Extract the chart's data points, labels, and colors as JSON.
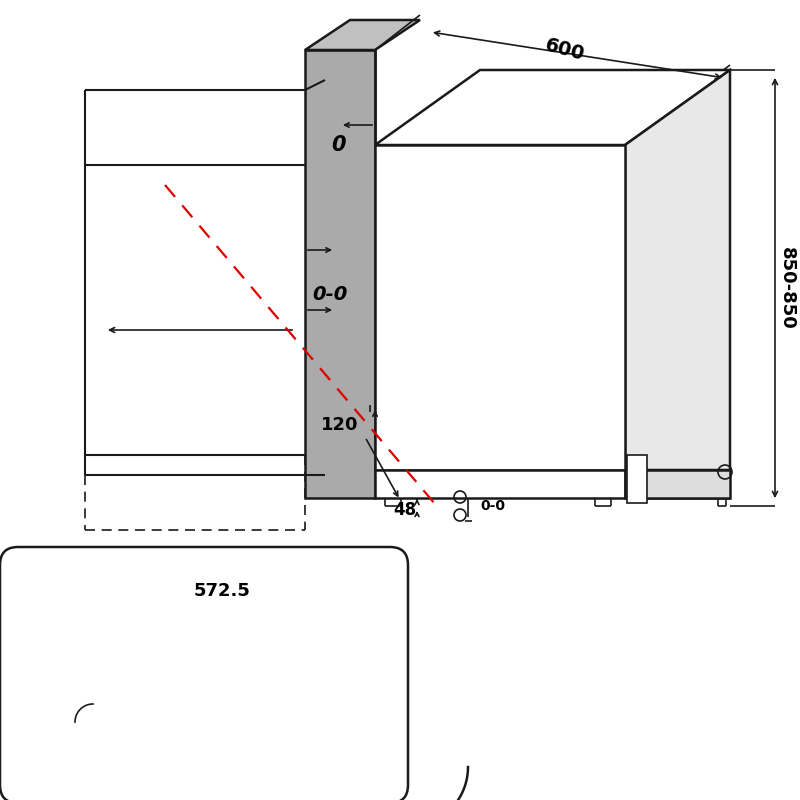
{
  "bg_color": "#ffffff",
  "lc": "#1a1a1a",
  "gray_fill": "#aaaaaa",
  "gray_fill2": "#c8c8c8",
  "red_color": "#dd0000",
  "label_600": "600",
  "label_850": "850-850",
  "label_120": "120",
  "label_48": "48",
  "label_572": "572.5",
  "label_0": "0",
  "label_00": "0-0",
  "label_00b": "0-0"
}
